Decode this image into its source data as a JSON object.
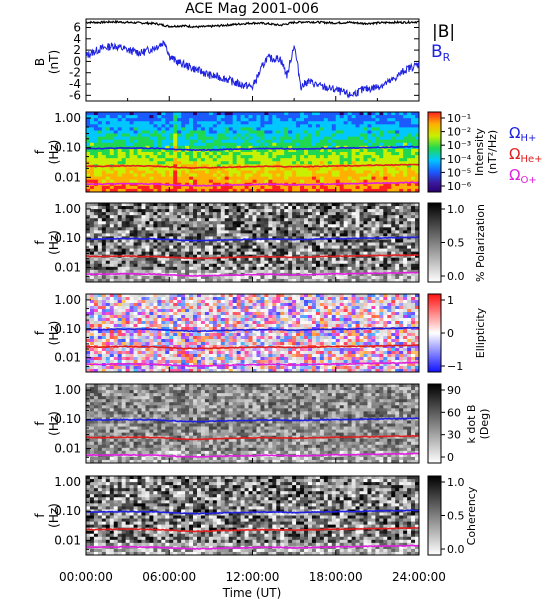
{
  "chart_data": [
    {
      "type": "line",
      "title": "ACE Mag 2001-006",
      "ylabel_top": "B",
      "ylabel_bottom": "(nT)",
      "yticks": [
        "6",
        "4",
        "2",
        "0",
        "-2",
        "-4",
        "-6"
      ],
      "ylim": [
        -7,
        7.5
      ],
      "xlim_hours": [
        0,
        24
      ],
      "legend": [
        "|B|",
        "B",
        "R"
      ],
      "series": [
        {
          "name": "|B|",
          "color": "#000000",
          "x": [
            0,
            1,
            2,
            3,
            4,
            5,
            6,
            7,
            8,
            9,
            10,
            11,
            12,
            13,
            14,
            15,
            16,
            17,
            18,
            19,
            20,
            21,
            22,
            23,
            24
          ],
          "values": [
            6.9,
            6.9,
            7.0,
            6.9,
            6.8,
            6.7,
            6.2,
            6.3,
            6.1,
            6.2,
            6.4,
            6.6,
            6.8,
            6.7,
            6.4,
            6.9,
            7.0,
            6.9,
            6.8,
            6.9,
            6.7,
            6.8,
            6.9,
            6.9,
            7.0
          ]
        },
        {
          "name": "B",
          "color": "#1f23e0",
          "x": [
            0,
            1,
            2,
            3,
            4,
            5,
            5.7,
            6,
            6.5,
            7,
            8,
            9,
            10,
            11,
            12,
            13,
            14,
            14.5,
            15,
            15.5,
            16,
            17,
            18,
            19,
            20,
            21,
            22,
            23,
            24
          ],
          "values": [
            1.0,
            2.2,
            2.8,
            2.0,
            1.5,
            2.5,
            3.5,
            1.0,
            0.0,
            -0.5,
            -1.5,
            -2.5,
            -3.0,
            -4.0,
            -4.5,
            0.5,
            0.5,
            -2.5,
            3.0,
            -4.5,
            -3.5,
            -4.5,
            -5.0,
            -6.0,
            -5.0,
            -4.5,
            -3.5,
            -1.5,
            -0.5
          ]
        }
      ]
    },
    {
      "type": "heatmap",
      "ylabel_top": "f",
      "ylabel_bottom": "(Hz)",
      "yticks": [
        "1.00",
        "0.10",
        "0.01"
      ],
      "colorbar_label": "Intensity",
      "colorbar_unit": "(nT²/Hz)",
      "colorbar_ticks": [
        "10⁻¹",
        "10⁻²",
        "10⁻³",
        "10⁻⁴",
        "10⁻⁵",
        "10⁻⁶"
      ],
      "lines": [
        {
          "name": "Ω",
          "sub": "H+",
          "color": "#2020e0"
        },
        {
          "name": "Ω",
          "sub": "He+",
          "color": "#e02020"
        },
        {
          "name": "Ω",
          "sub": "O+",
          "color": "#e020e0"
        }
      ]
    },
    {
      "type": "heatmap",
      "ylabel_top": "f",
      "ylabel_bottom": "(Hz)",
      "yticks": [
        "1.00",
        "0.10",
        "0.01"
      ],
      "colorbar_label": "% Polarization",
      "colorbar_ticks": [
        "1.0",
        "0.5",
        "0.0"
      ]
    },
    {
      "type": "heatmap",
      "ylabel_top": "f",
      "ylabel_bottom": "(Hz)",
      "yticks": [
        "1.00",
        "0.10",
        "0.01"
      ],
      "colorbar_label": "Ellipticity",
      "colorbar_ticks": [
        "1",
        "0",
        "−1"
      ]
    },
    {
      "type": "heatmap",
      "ylabel_top": "f",
      "ylabel_bottom": "(Hz)",
      "yticks": [
        "1.00",
        "0.10",
        "0.01"
      ],
      "colorbar_label": "k dot B",
      "colorbar_unit": "(Deg)",
      "colorbar_ticks": [
        "90",
        "60",
        "30",
        "0"
      ]
    },
    {
      "type": "heatmap",
      "ylabel_top": "f",
      "ylabel_bottom": "(Hz)",
      "yticks": [
        "1.00",
        "0.10",
        "0.01"
      ],
      "colorbar_label": "Coherency",
      "colorbar_ticks": [
        "1.0",
        "0.5",
        "0.0"
      ]
    }
  ],
  "x_axis": {
    "ticks": [
      "00:00:00",
      "06:00:00",
      "12:00:00",
      "18:00:00",
      "24:00:00"
    ],
    "label": "Time (UT)"
  },
  "gyro_lines": {
    "H": [
      0.095,
      0.094,
      0.096,
      0.097,
      0.096,
      0.095,
      0.09,
      0.085,
      0.083,
      0.085,
      0.088,
      0.09,
      0.092,
      0.094,
      0.093,
      0.09,
      0.092,
      0.095,
      0.097,
      0.098,
      0.1,
      0.102,
      0.104,
      0.106,
      0.108
    ],
    "He": [
      0.024,
      0.0235,
      0.024,
      0.0245,
      0.024,
      0.0238,
      0.0225,
      0.021,
      0.0208,
      0.0212,
      0.022,
      0.0225,
      0.023,
      0.0235,
      0.0232,
      0.0225,
      0.023,
      0.0238,
      0.0243,
      0.0245,
      0.025,
      0.0255,
      0.026,
      0.0265,
      0.027
    ],
    "O": [
      0.006,
      0.0059,
      0.006,
      0.0061,
      0.006,
      0.0059,
      0.0056,
      0.0053,
      0.0052,
      0.0053,
      0.0055,
      0.0056,
      0.0057,
      0.0059,
      0.0058,
      0.0056,
      0.0057,
      0.0059,
      0.0061,
      0.0061,
      0.0063,
      0.0064,
      0.0065,
      0.0066,
      0.0068
    ]
  },
  "colors": {
    "B": "#1f23e0",
    "H": "#2020e0",
    "He": "#e02020",
    "O": "#e020e0"
  }
}
